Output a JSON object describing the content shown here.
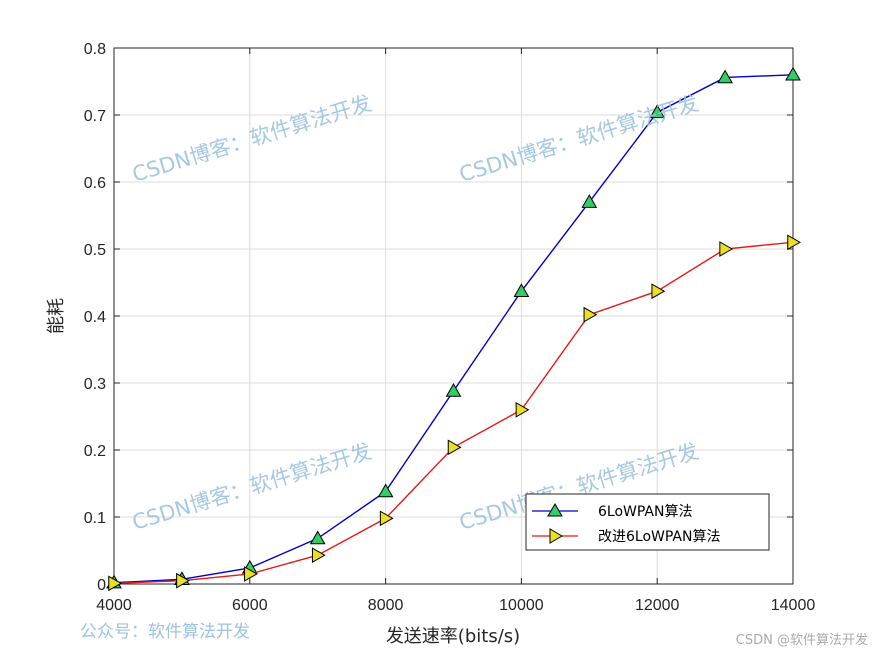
{
  "chart_data": {
    "type": "line",
    "xlabel": "发送速率(bits/s)",
    "ylabel": "能耗",
    "xlim": [
      4000,
      14000
    ],
    "ylim": [
      0,
      0.8
    ],
    "xticks": [
      4000,
      6000,
      8000,
      10000,
      12000,
      14000
    ],
    "yticks": [
      0,
      0.1,
      0.2,
      0.3,
      0.4,
      0.5,
      0.6,
      0.7,
      0.8
    ],
    "xtick_labels": [
      "4000",
      "6000",
      "8000",
      "10000",
      "12000",
      "14000"
    ],
    "ytick_labels": [
      "0",
      "0.1",
      "0.2",
      "0.3",
      "0.4",
      "0.5",
      "0.6",
      "0.7",
      "0.8"
    ],
    "grid": true,
    "legend_position": "bottom-right",
    "x": [
      4000,
      5000,
      6000,
      7000,
      8000,
      9000,
      10000,
      11000,
      12000,
      13000,
      14000
    ],
    "series": [
      {
        "name": "6LoWPAN算法",
        "color": "#0000c8",
        "marker": "triangle-up",
        "marker_color": "#33cc66",
        "values": [
          0.002,
          0.007,
          0.024,
          0.068,
          0.138,
          0.288,
          0.437,
          0.57,
          0.704,
          0.756,
          0.76
        ]
      },
      {
        "name": "改进6LoWPAN算法",
        "color": "#e81818",
        "marker": "triangle-right",
        "marker_color": "#e8e020",
        "values": [
          0.001,
          0.005,
          0.015,
          0.043,
          0.098,
          0.204,
          0.26,
          0.402,
          0.437,
          0.5,
          0.51
        ]
      }
    ]
  },
  "watermarks": {
    "blog": "CSDN博客：软件算法开发",
    "public_account": "公众号：软件算法开发",
    "credit": "CSDN @软件算法开发"
  }
}
